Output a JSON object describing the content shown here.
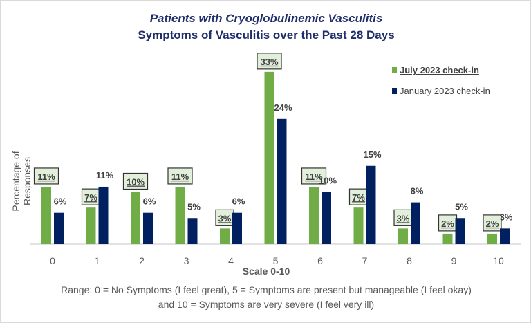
{
  "chart_data": {
    "type": "bar",
    "title": "Patients with Cryoglobulinemic  Vasculitis",
    "subtitle": "Symptoms of Vasculitis over the Past 28 Days",
    "xlabel": "Scale 0-10",
    "ylabel": "Percentage of Responses",
    "note": "Range: 0 = No Symptoms (I feel great), 5 = Symptoms are present but manageable (I feel okay) and 10 = Symptoms are very severe (I feel very ill)",
    "categories": [
      "0",
      "1",
      "2",
      "3",
      "4",
      "5",
      "6",
      "7",
      "8",
      "9",
      "10"
    ],
    "series": [
      {
        "name": "July 2023 check-in",
        "color": "#70ad47",
        "values": [
          11,
          7,
          10,
          11,
          3,
          33,
          11,
          7,
          3,
          2,
          2
        ],
        "labels": [
          "11%",
          "7%",
          "10%",
          "11%",
          "3%",
          "33%",
          "11%",
          "7%",
          "3%",
          "2%",
          "2%"
        ]
      },
      {
        "name": "January 2023 check-in",
        "color": "#002060",
        "values": [
          6,
          11,
          6,
          5,
          6,
          24,
          10,
          15,
          8,
          5,
          3
        ],
        "labels": [
          "6%",
          "11%",
          "6%",
          "5%",
          "6%",
          "24%",
          "10%",
          "15%",
          "8%",
          "5%",
          "3%"
        ]
      }
    ],
    "ylim": [
      0,
      35
    ],
    "grid": false,
    "legend": "top-right"
  }
}
